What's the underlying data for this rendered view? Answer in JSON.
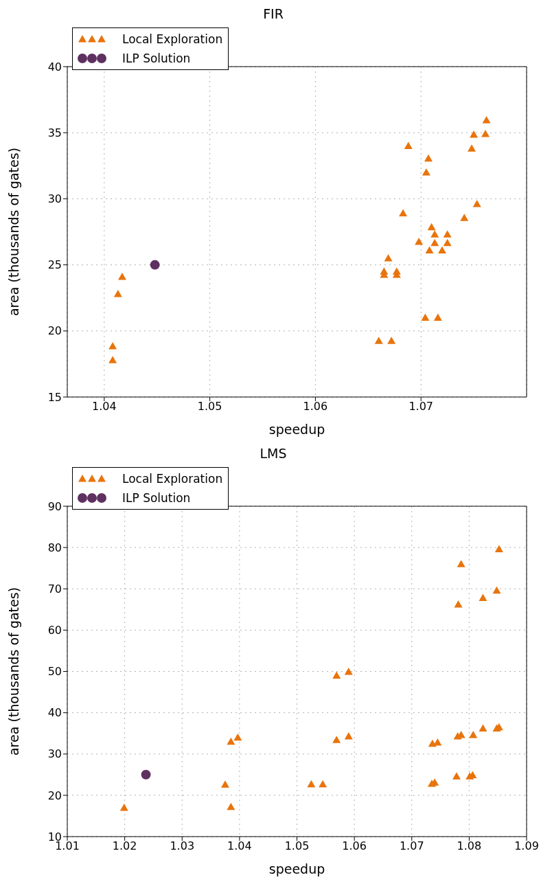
{
  "chart_data": [
    {
      "type": "scatter",
      "title": "FIR",
      "xlabel": "speedup",
      "ylabel": "area (thousands of gates)",
      "xlim": [
        1.0365,
        1.08
      ],
      "xticks": [
        1.04,
        1.05,
        1.06,
        1.07
      ],
      "ylim": [
        15,
        40
      ],
      "yticks": [
        15,
        20,
        25,
        30,
        35,
        40
      ],
      "grid": true,
      "legend": "top left",
      "series": [
        {
          "name": "Local Exploration",
          "color": "#e8740c",
          "marker": "triangle",
          "x": [
            1.0408,
            1.0408,
            1.0413,
            1.0417,
            1.066,
            1.0672,
            1.0665,
            1.0665,
            1.0669,
            1.0677,
            1.0677,
            1.0683,
            1.0688,
            1.0698,
            1.0704,
            1.0716,
            1.0705,
            1.0707,
            1.0708,
            1.071,
            1.0713,
            1.0713,
            1.072,
            1.0725,
            1.0725,
            1.0741,
            1.0748,
            1.075,
            1.0753,
            1.0761,
            1.0762
          ],
          "values": [
            18.85,
            17.8,
            22.8,
            24.1,
            19.25,
            19.25,
            24.5,
            24.25,
            25.5,
            24.5,
            24.25,
            28.9,
            34.0,
            26.75,
            21.0,
            21.0,
            32.0,
            33.05,
            26.1,
            27.85,
            27.3,
            26.65,
            26.1,
            27.3,
            26.65,
            28.55,
            33.8,
            34.85,
            29.6,
            34.9,
            35.95
          ]
        },
        {
          "name": "ILP Solution",
          "color": "#5e3160",
          "marker": "circle",
          "x": [
            1.0448
          ],
          "values": [
            25.0
          ]
        }
      ]
    },
    {
      "type": "scatter",
      "title": "LMS",
      "xlabel": "speedup",
      "ylabel": "area (thousands of gates)",
      "xlim": [
        1.01,
        1.09
      ],
      "xticks": [
        1.01,
        1.02,
        1.03,
        1.04,
        1.05,
        1.06,
        1.07,
        1.08,
        1.09
      ],
      "ylim": [
        10,
        90
      ],
      "yticks": [
        10,
        20,
        30,
        40,
        50,
        60,
        70,
        80,
        90
      ],
      "grid": true,
      "legend": "top left",
      "series": [
        {
          "name": "Local Exploration",
          "color": "#e8740c",
          "marker": "triangle",
          "x": [
            1.0199,
            1.0385,
            1.0375,
            1.0385,
            1.0397,
            1.0525,
            1.0545,
            1.0569,
            1.0569,
            1.059,
            1.059,
            1.0852,
            1.0786,
            1.0848,
            1.0824,
            1.0781,
            1.0736,
            1.0745,
            1.078,
            1.0786,
            1.0807,
            1.0824,
            1.0848,
            1.0852,
            1.0735,
            1.074,
            1.0778,
            1.0801,
            1.0806
          ],
          "values": [
            17.0,
            17.2,
            22.6,
            33.0,
            34.0,
            22.7,
            22.7,
            49.0,
            33.4,
            49.9,
            34.3,
            79.6,
            76.0,
            69.6,
            67.8,
            66.2,
            32.5,
            32.8,
            34.3,
            34.6,
            34.6,
            36.2,
            36.2,
            36.5,
            22.8,
            23.1,
            24.6,
            24.6,
            24.9
          ]
        },
        {
          "name": "ILP Solution",
          "color": "#5e3160",
          "marker": "circle",
          "x": [
            1.0237
          ],
          "values": [
            25.0
          ]
        }
      ]
    }
  ]
}
